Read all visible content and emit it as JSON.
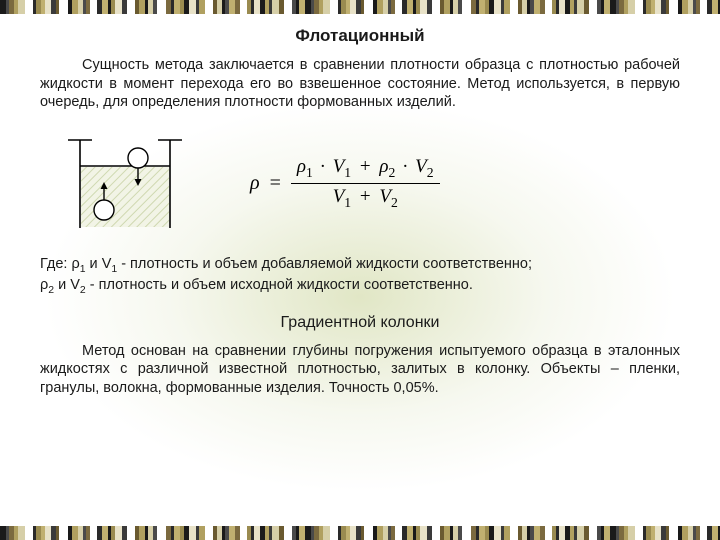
{
  "titles": {
    "flotation": "Флотационный",
    "gradient": "Градиентной колонки"
  },
  "paragraphs": {
    "flotation_body": "Сущность метода заключается в сравнении плотности образца с плотностью рабочей жидкости в момент перехода его во взвешенное состояние. Метод используется, в первую очередь, для определения плотности формованных изделий.",
    "where_line1_prefix": "Где: ρ",
    "where_line1_mid": " и V",
    "where_line1_rest": " - плотность и объем добавляемой жидкости соответственно;",
    "where_line2_prefix": "ρ",
    "where_line2_mid": " и V",
    "where_line2_rest": " - плотность и объем исходной жидкости соответственно.",
    "gradient_body": "Метод основан на сравнении глубины погружения испытуемого образца в эталонных жидкостях с различной известной плотностью, залитых в колонку. Объекты – пленки, гранулы, волокна, формованные изделия. Точность 0,05%."
  },
  "formula": {
    "lhs": "ρ",
    "eq": "=",
    "num_p1": "ρ",
    "num_s1": "1",
    "num_dot": "·",
    "num_v1": "V",
    "num_vs1": "1",
    "num_plus": "+",
    "num_p2": "ρ",
    "num_s2": "2",
    "num_v2": "V",
    "num_vs2": "2",
    "den_v1": "V",
    "den_s1": "1",
    "den_plus": "+",
    "den_v2": "V",
    "den_s2": "2"
  },
  "subs": {
    "one": "1",
    "two": "2"
  },
  "diagram": {
    "stroke": "#000000",
    "fill_liquid": "rgba(0,0,0,0)",
    "bg_hatch": "#c9d5b0"
  },
  "barcode": {
    "colors": [
      "#1a1a1a",
      "#4a4a4a",
      "#7b6a3f",
      "#b0a060",
      "#d6cfa8",
      "#ffffff",
      "#2a2a2a",
      "#9a8b50",
      "#c0b070",
      "#e8e2c8",
      "#3a3a3a",
      "#6a5a30",
      "#ffffff",
      "#1a1a1a",
      "#b0a060",
      "#d6cfa8",
      "#4a4a4a",
      "#7b6a3f",
      "#ffffff",
      "#2a2a2a",
      "#c0b070",
      "#1a1a1a",
      "#9a8b50",
      "#e8e2c8",
      "#3a3a3a",
      "#ffffff",
      "#6a5a30",
      "#b0a060",
      "#1a1a1a",
      "#d6cfa8",
      "#4a4a4a",
      "#ffffff",
      "#7b6a3f",
      "#2a2a2a",
      "#c0b070",
      "#9a8b50",
      "#1a1a1a",
      "#e8e2c8",
      "#3a3a3a",
      "#b0a060",
      "#ffffff",
      "#6a5a30",
      "#d6cfa8",
      "#1a1a1a",
      "#4a4a4a",
      "#c0b070",
      "#7b6a3f",
      "#ffffff",
      "#9a8b50",
      "#2a2a2a",
      "#e8e2c8",
      "#1a1a1a",
      "#b0a060",
      "#3a3a3a",
      "#d6cfa8",
      "#6a5a30",
      "#ffffff",
      "#4a4a4a",
      "#1a1a1a",
      "#c0b070"
    ],
    "widths": [
      6,
      3,
      5,
      4,
      7,
      8,
      3,
      5,
      4,
      6,
      5,
      3,
      9,
      4,
      6,
      5,
      3,
      4,
      7,
      5,
      6,
      3,
      4,
      7,
      5,
      8,
      4,
      6,
      3,
      5,
      4,
      9,
      5,
      3,
      6,
      4,
      5,
      7,
      3,
      6,
      8,
      4,
      5,
      3,
      4,
      6,
      5,
      7,
      4,
      3,
      6,
      5,
      4,
      3,
      7,
      5,
      8,
      4,
      3,
      6
    ]
  },
  "colors": {
    "text": "#1a1a1a",
    "background": "#ffffff",
    "glow": "#c8d296"
  },
  "fontsizes": {
    "title": 17,
    "body": 14.5,
    "formula": 20,
    "subtitle": 16
  }
}
